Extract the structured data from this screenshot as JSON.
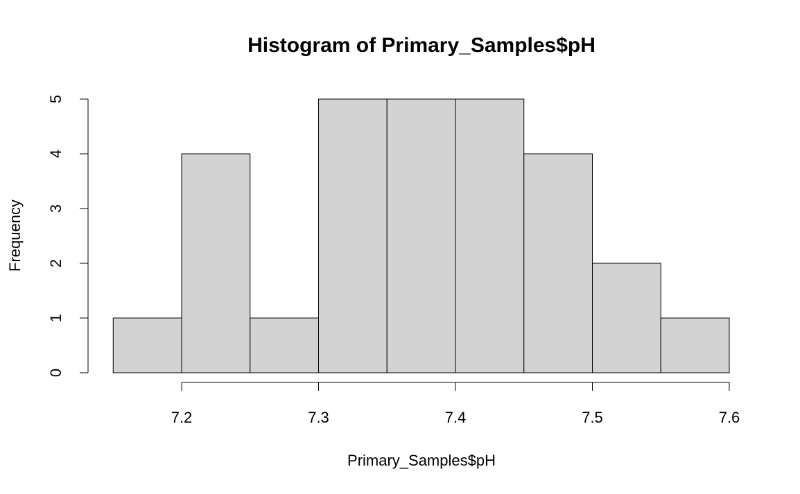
{
  "chart_data": {
    "type": "bar",
    "title": "Histogram of Primary_Samples$pH",
    "xlabel": "Primary_Samples$pH",
    "ylabel": "Frequency",
    "bins": [
      {
        "from": 7.15,
        "to": 7.2,
        "count": 1
      },
      {
        "from": 7.2,
        "to": 7.25,
        "count": 4
      },
      {
        "from": 7.25,
        "to": 7.3,
        "count": 1
      },
      {
        "from": 7.3,
        "to": 7.35,
        "count": 5
      },
      {
        "from": 7.35,
        "to": 7.4,
        "count": 5
      },
      {
        "from": 7.4,
        "to": 7.45,
        "count": 5
      },
      {
        "from": 7.45,
        "to": 7.5,
        "count": 4
      },
      {
        "from": 7.5,
        "to": 7.55,
        "count": 2
      },
      {
        "from": 7.55,
        "to": 7.6,
        "count": 1
      }
    ],
    "xticks": [
      "7.2",
      "7.3",
      "7.4",
      "7.5",
      "7.6"
    ],
    "yticks": [
      "0",
      "1",
      "2",
      "3",
      "4",
      "5"
    ],
    "xlim": [
      7.15,
      7.6
    ],
    "ylim": [
      0,
      5
    ],
    "bar_color": "#d3d3d3",
    "grid": false
  }
}
